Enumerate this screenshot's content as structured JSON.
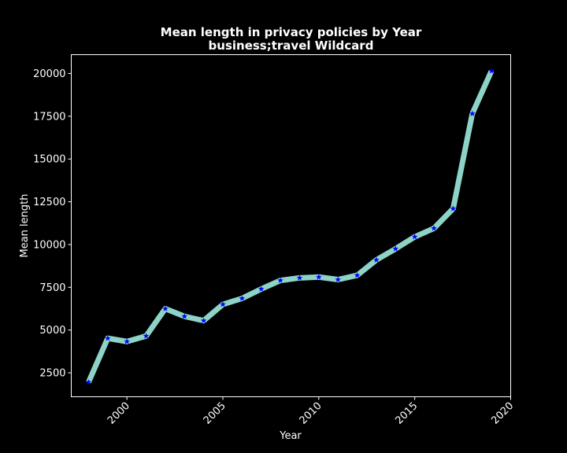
{
  "chart_data": {
    "type": "line",
    "title": "Mean length in privacy policies by Year",
    "subtitle": "business;travel Wildcard",
    "xlabel": "Year",
    "ylabel": "Mean length",
    "xlim": [
      1997.1,
      2020.0
    ],
    "ylim": [
      1100,
      21100
    ],
    "x_ticks": [
      2000,
      2005,
      2010,
      2015,
      2020
    ],
    "y_ticks": [
      2500,
      5000,
      7500,
      10000,
      12500,
      15000,
      17500,
      20000
    ],
    "grid": false,
    "legend": "none",
    "series": [
      {
        "x": [
          1998,
          1999,
          2000,
          2001,
          2002,
          2003,
          2004,
          2005,
          2006,
          2007,
          2008,
          2009,
          2010,
          2011,
          2012,
          2013,
          2014,
          2015,
          2016,
          2017,
          2018,
          2019
        ],
        "values": [
          1950,
          4520,
          4330,
          4650,
          6250,
          5800,
          5550,
          6500,
          6850,
          7400,
          7900,
          8050,
          8100,
          7950,
          8200,
          9100,
          9750,
          10450,
          10950,
          12100,
          17650,
          20150
        ],
        "line_color": "#8dd3c7",
        "marker": "star",
        "marker_color": "#0000ff"
      }
    ]
  }
}
